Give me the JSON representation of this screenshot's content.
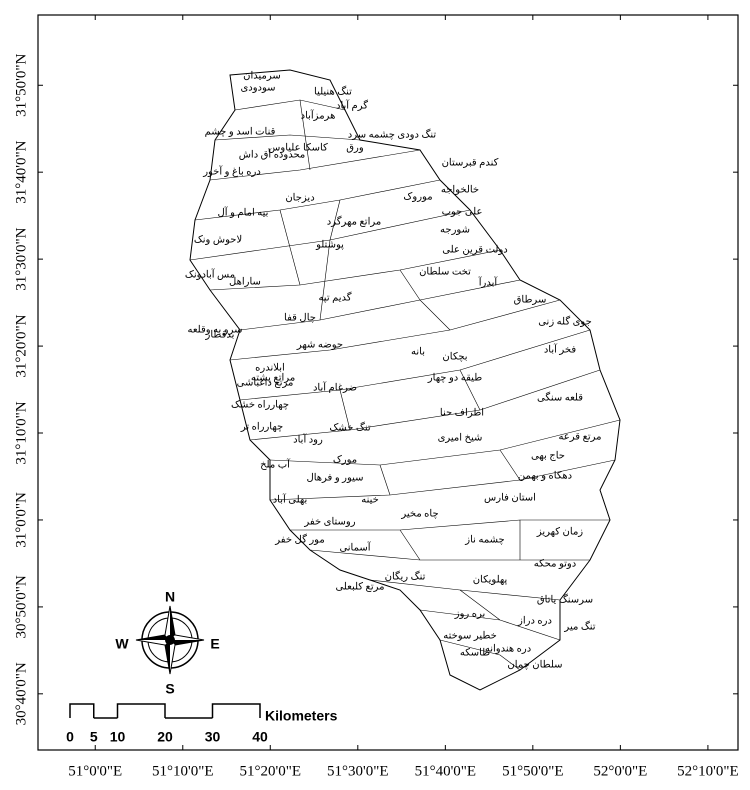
{
  "map": {
    "lat_range": [
      30.559,
      31.968
    ],
    "lon_range": [
      50.891,
      52.224
    ],
    "lat_ticks": [
      {
        "value": 31.8333,
        "label": "31°50'0\"N"
      },
      {
        "value": 31.6667,
        "label": "31°40'0\"N"
      },
      {
        "value": 31.5,
        "label": "31°30'0\"N"
      },
      {
        "value": 31.3333,
        "label": "31°20'0\"N"
      },
      {
        "value": 31.1667,
        "label": "31°10'0\"N"
      },
      {
        "value": 31,
        "label": "31°0'0\"N"
      },
      {
        "value": 30.8333,
        "label": "30°50'0\"N"
      },
      {
        "value": 30.6667,
        "label": "30°40'0\"N"
      }
    ],
    "lon_ticks": [
      {
        "value": 51,
        "label": "51°0'0\"E"
      },
      {
        "value": 51.1667,
        "label": "51°10'0\"E"
      },
      {
        "value": 51.3333,
        "label": "51°20'0\"E"
      },
      {
        "value": 51.5,
        "label": "51°30'0\"E"
      },
      {
        "value": 51.6667,
        "label": "51°40'0\"E"
      },
      {
        "value": 51.8333,
        "label": "51°50'0\"E"
      },
      {
        "value": 52,
        "label": "52°0'0\"E"
      },
      {
        "value": 52.1667,
        "label": "52°10'0\"E"
      }
    ],
    "compass": {
      "n": "N",
      "e": "E",
      "s": "S",
      "w": "W"
    },
    "scale_bar": {
      "unit": "Kilometers",
      "ticks": [
        0,
        5,
        10,
        20,
        30,
        40
      ]
    },
    "places": [
      "سرمیدان",
      "سودودی",
      "تنگ هنیلیا",
      "گرم آباد",
      "هرمزآباد",
      "قنات اسد و چشم",
      "تنگ دودی چشمه سرد",
      "ورق",
      "کاسکا علیاوس",
      "محدوده آق داش",
      "کندم قبرستان",
      "دره باغ و آخور",
      "خالخواجه",
      "موروک",
      "دیزجان",
      "علی جوب",
      "بیه امام و آل",
      "مراتع مهرگرد",
      "شورجه",
      "لاحوش ونک",
      "دولت قرین علی",
      "پوشتلو",
      "تخت سلطان",
      "آبدرآ",
      "سرطاق",
      "مس آبادونک",
      "ساراهل",
      "گدیم تپه",
      "سرو به وقلعه",
      "چال قفا",
      "جوی گله زنی",
      "فخر آباد",
      "بدقطار",
      "حوضه شهر",
      "بچکان",
      "بانه",
      "ابلاندره",
      "مراتع پشته",
      "مرتع داغباشی",
      "ضرغام آباد",
      "طیقه دو چهار",
      "قلعه سنگی",
      "چهارراه خشک",
      "چهارراه تر",
      "تنگ خشک",
      "اطراف حنا",
      "مرتع قرعه",
      "رود آباد",
      "شیخ امیری",
      "حاج بهی",
      "آب ملخ",
      "مورک",
      "دهکاه و بهمن",
      "سیور و فرهال",
      "بهلی آباد",
      "خینه",
      "استان فارس",
      "روستای خفر",
      "چاه مخیر",
      "زمان کهریز",
      "مور گل خفر",
      "آسمانی",
      "چشمه ناز",
      "دوتو محکه",
      "تنگ ریگان",
      "پهلویکان",
      "مرتع کلبعلی",
      "سرسنگ یاتاق",
      "دره دراز",
      "بره روز",
      "تنگ میر",
      "خطیر سوخته",
      "دره هندوانه",
      "طاسکه",
      "سلطان چمان"
    ]
  }
}
